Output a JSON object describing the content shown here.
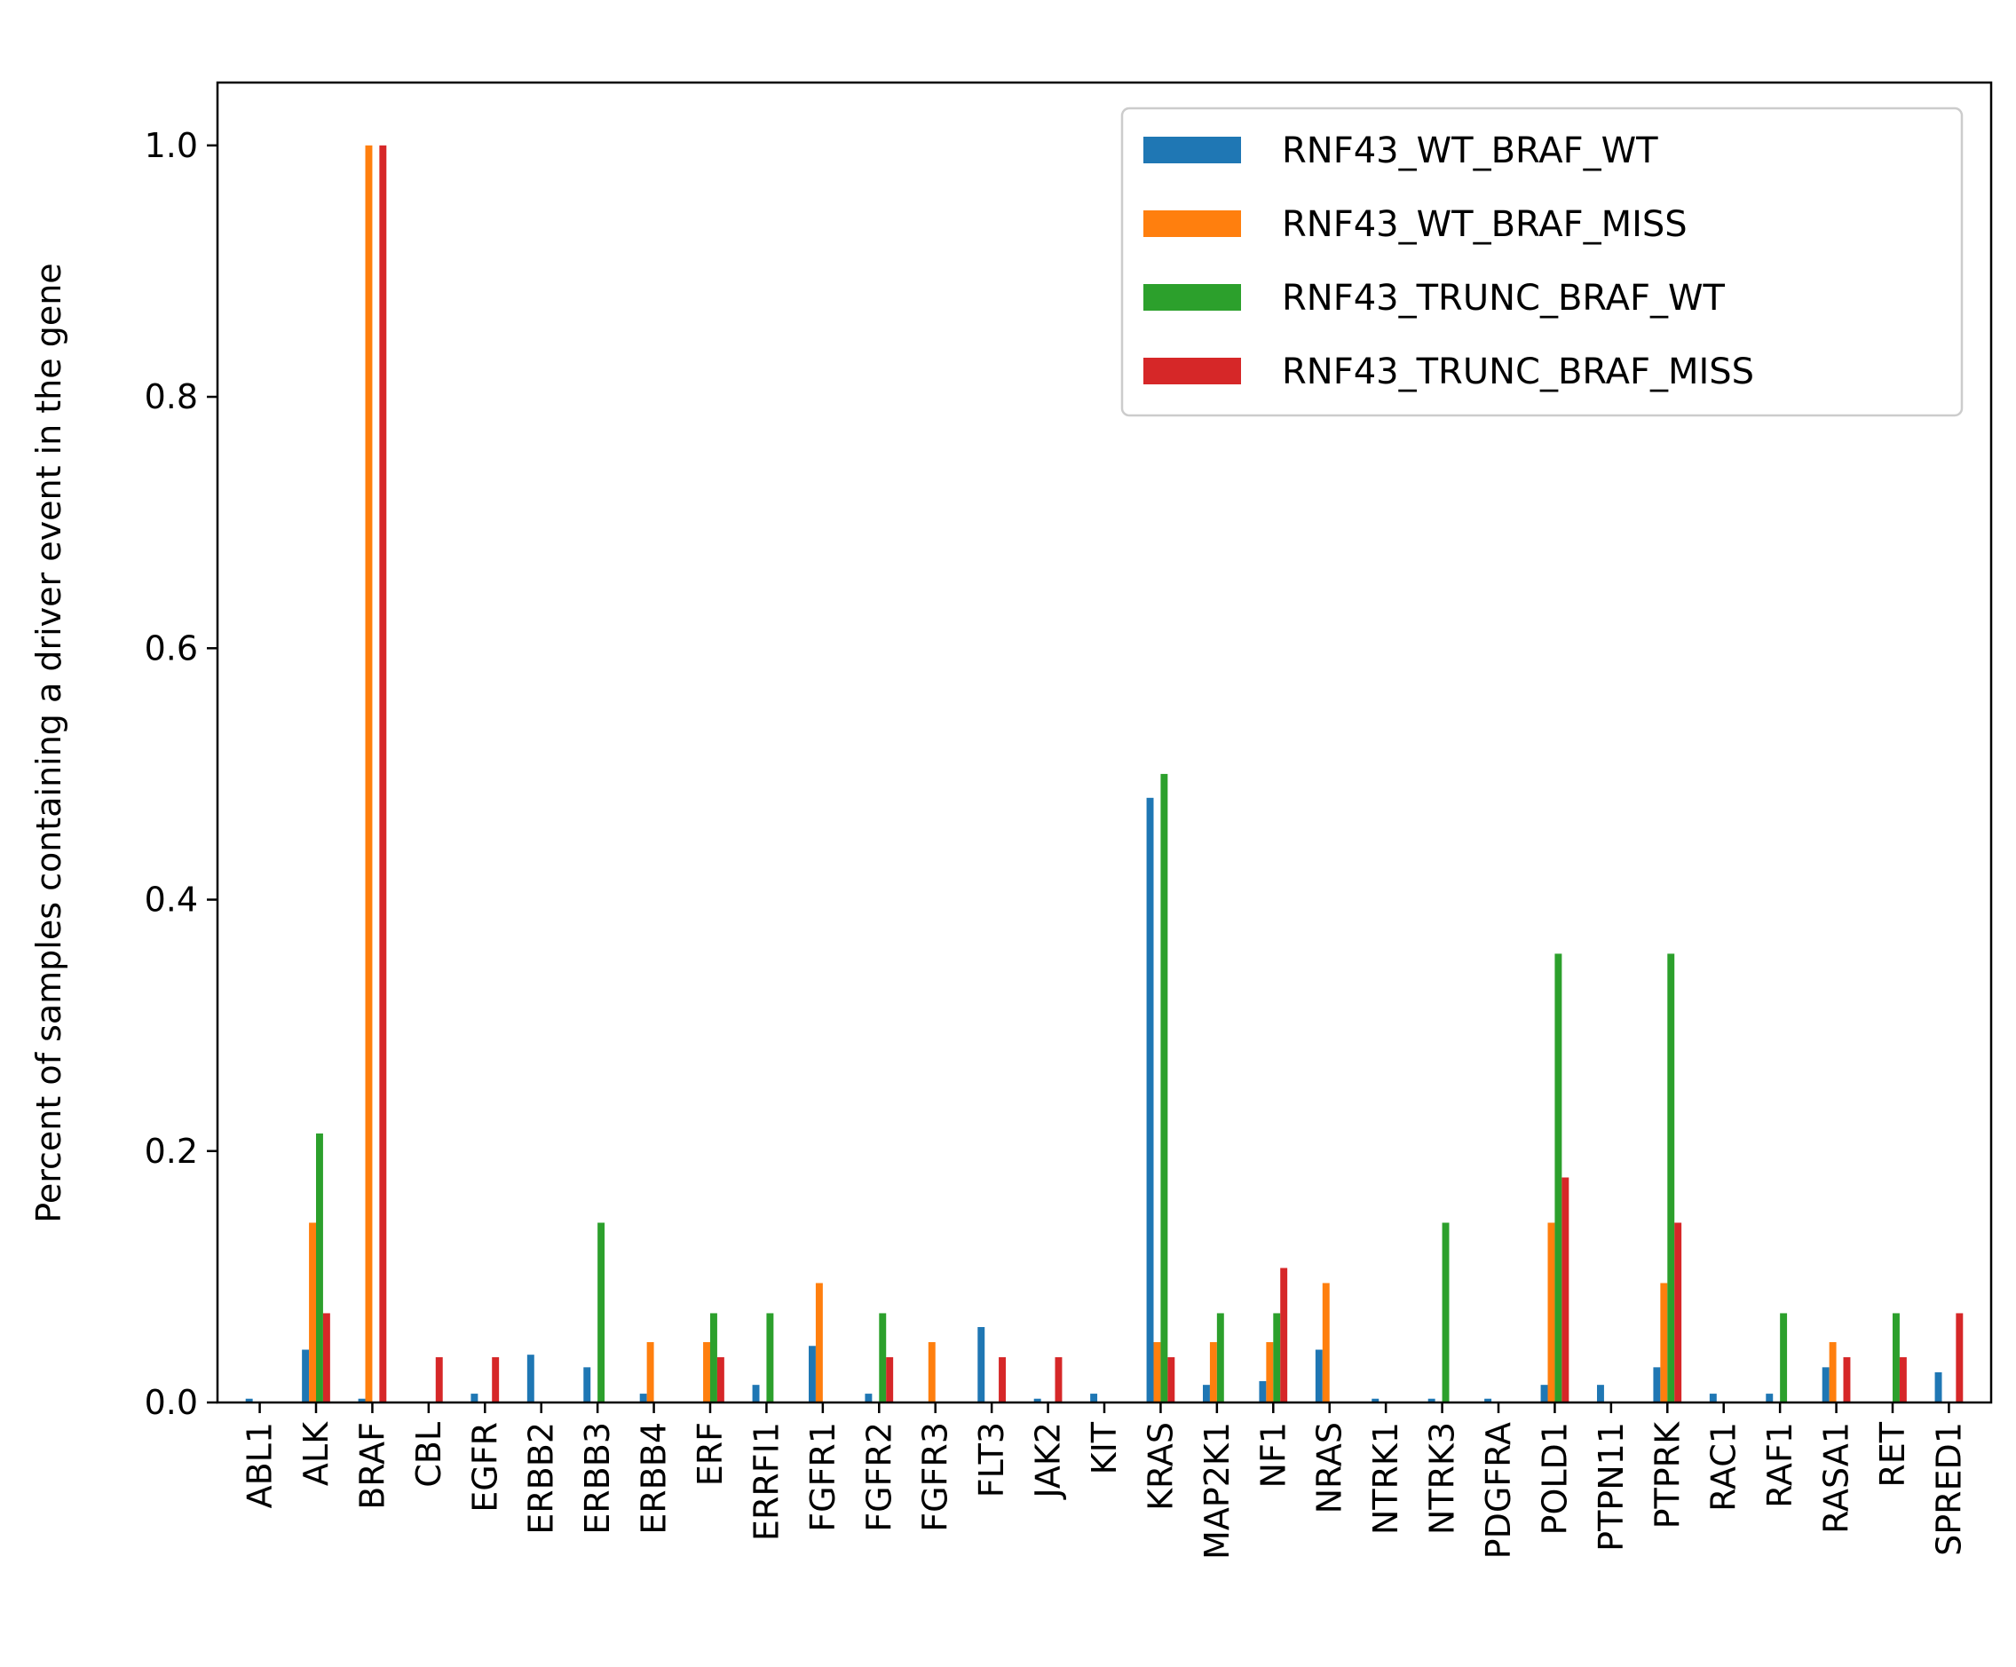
{
  "chart_data": {
    "type": "bar",
    "title": "",
    "xlabel": "",
    "ylabel": "Percent of samples containing a driver event in the gene",
    "ylim": [
      0,
      1.05
    ],
    "yticks": [
      0.0,
      0.2,
      0.4,
      0.6,
      0.8,
      1.0
    ],
    "ytick_labels": [
      "0.0",
      "0.2",
      "0.4",
      "0.6",
      "0.8",
      "1.0"
    ],
    "grid": false,
    "legend_position": "top-right",
    "categories": [
      "ABL1",
      "ALK",
      "BRAF",
      "CBL",
      "EGFR",
      "ERBB2",
      "ERBB3",
      "ERBB4",
      "ERF",
      "ERRFI1",
      "FGFR1",
      "FGFR2",
      "FGFR3",
      "FLT3",
      "JAK2",
      "KIT",
      "KRAS",
      "MAP2K1",
      "NF1",
      "NRAS",
      "NTRK1",
      "NTRK3",
      "PDGFRA",
      "POLD1",
      "PTPN11",
      "PTPRK",
      "RAC1",
      "RAF1",
      "RASA1",
      "RET",
      "SPRED1"
    ],
    "series": [
      {
        "name": "RNF43_WT_BRAF_WT",
        "color": "#1f77b4",
        "values": [
          0.003,
          0.042,
          0.003,
          0.0,
          0.007,
          0.038,
          0.028,
          0.007,
          0.0,
          0.014,
          0.045,
          0.007,
          0.0,
          0.06,
          0.003,
          0.007,
          0.481,
          0.014,
          0.017,
          0.042,
          0.003,
          0.003,
          0.003,
          0.014,
          0.014,
          0.028,
          0.007,
          0.007,
          0.028,
          0.0,
          0.024
        ]
      },
      {
        "name": "RNF43_WT_BRAF_MISS",
        "color": "#ff7f0e",
        "values": [
          0.0,
          0.143,
          1.0,
          0.0,
          0.0,
          0.0,
          0.0,
          0.048,
          0.048,
          0.0,
          0.095,
          0.0,
          0.048,
          0.0,
          0.0,
          0.0,
          0.048,
          0.048,
          0.048,
          0.095,
          0.0,
          0.0,
          0.0,
          0.143,
          0.0,
          0.095,
          0.0,
          0.0,
          0.048,
          0.0,
          0.0
        ]
      },
      {
        "name": "RNF43_TRUNC_BRAF_WT",
        "color": "#2ca02c",
        "values": [
          0.0,
          0.214,
          0.0,
          0.0,
          0.0,
          0.0,
          0.143,
          0.0,
          0.071,
          0.071,
          0.0,
          0.071,
          0.0,
          0.0,
          0.0,
          0.0,
          0.5,
          0.071,
          0.071,
          0.0,
          0.0,
          0.143,
          0.0,
          0.357,
          0.0,
          0.357,
          0.0,
          0.071,
          0.0,
          0.071,
          0.0
        ]
      },
      {
        "name": "RNF43_TRUNC_BRAF_MISS",
        "color": "#d62728",
        "values": [
          0.0,
          0.071,
          1.0,
          0.036,
          0.036,
          0.0,
          0.0,
          0.0,
          0.036,
          0.0,
          0.0,
          0.036,
          0.0,
          0.036,
          0.036,
          0.0,
          0.036,
          0.0,
          0.107,
          0.0,
          0.0,
          0.0,
          0.0,
          0.179,
          0.0,
          0.143,
          0.0,
          0.0,
          0.036,
          0.036,
          0.071
        ]
      }
    ]
  }
}
